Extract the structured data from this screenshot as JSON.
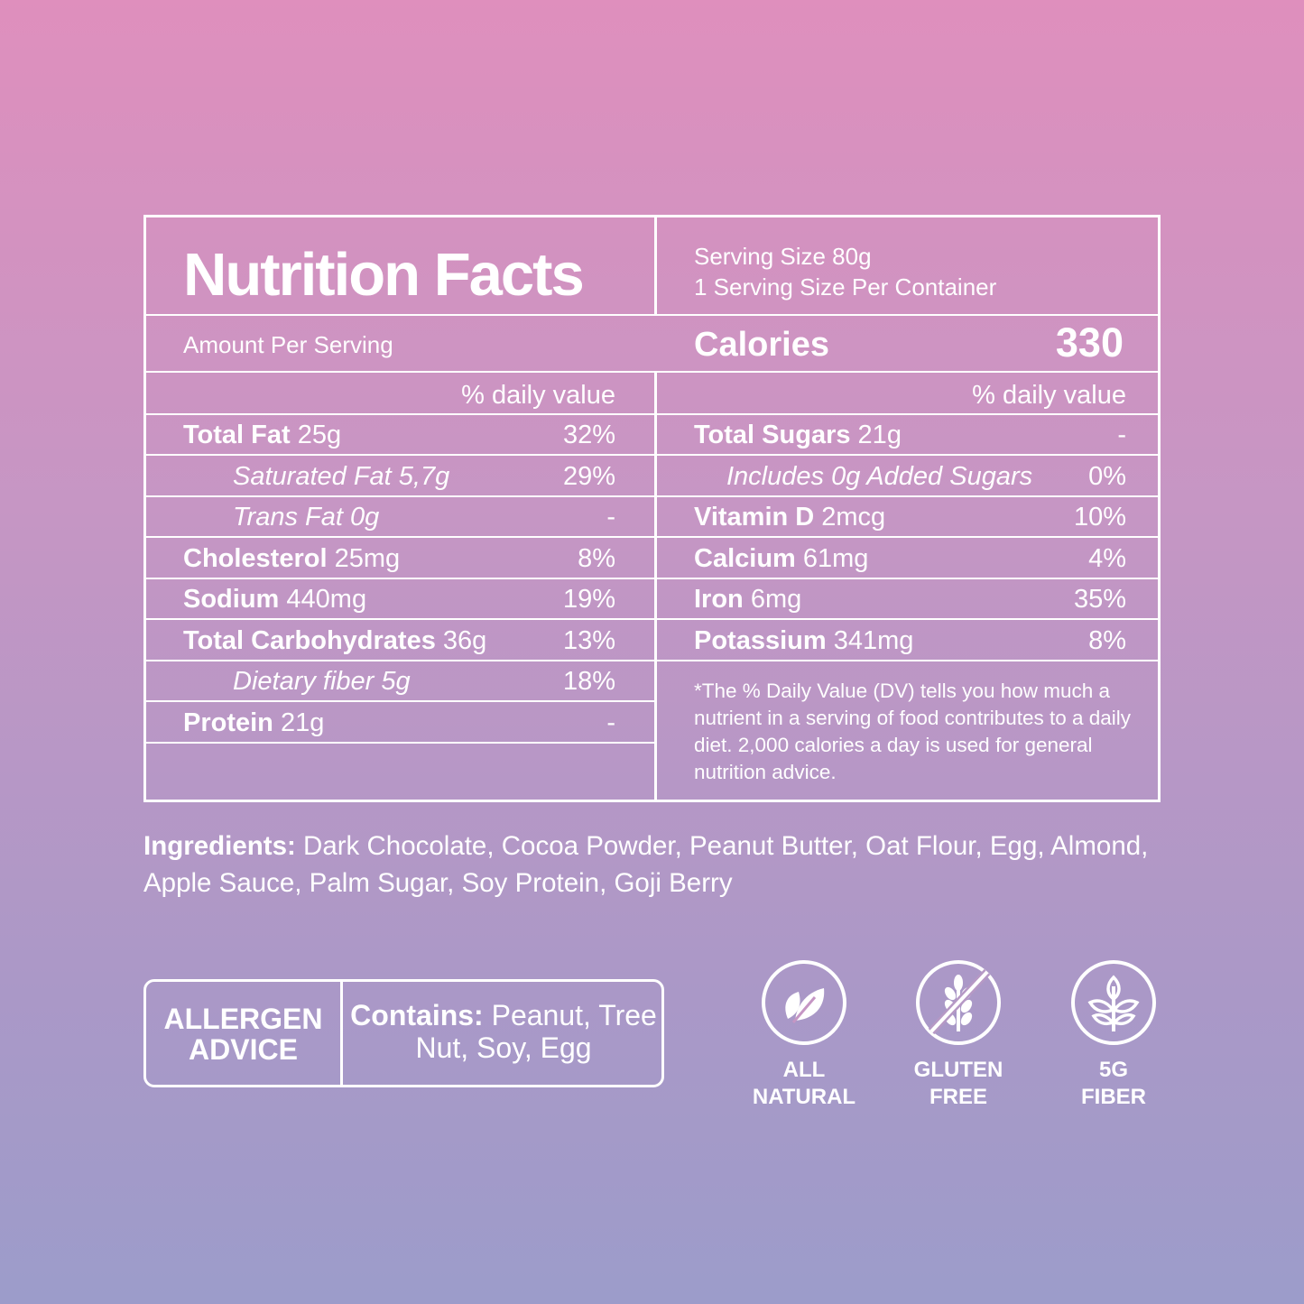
{
  "label": {
    "title": "Nutrition Facts",
    "serving_size": "Serving Size 80g",
    "servings_per_container": "1 Serving Size Per Container",
    "amount_per_serving": "Amount Per Serving",
    "calories_label": "Calories",
    "calories_value": "330",
    "dv_header_left": "% daily value",
    "dv_header_right": "% daily value",
    "left_rows": [
      {
        "name": "Total Fat",
        "amount": " 25g",
        "dv": "32%"
      },
      {
        "name": "Saturated Fat 5,7g",
        "amount": "",
        "dv": "29%"
      },
      {
        "name": "Trans Fat 0g",
        "amount": "",
        "dv": "-"
      },
      {
        "name": "Cholesterol",
        "amount": " 25mg",
        "dv": "8%"
      },
      {
        "name": "Sodium",
        "amount": " 440mg",
        "dv": "19%"
      },
      {
        "name": "Total Carbohydrates",
        "amount": " 36g",
        "dv": "13%"
      },
      {
        "name": "Dietary fiber 5g",
        "amount": "",
        "dv": "18%"
      },
      {
        "name": "Protein",
        "amount": " 21g",
        "dv": "-"
      }
    ],
    "right_rows": [
      {
        "name": "Total Sugars",
        "amount": " 21g",
        "dv": "-"
      },
      {
        "name": "Includes 0g Added Sugars",
        "amount": "",
        "dv": "0%"
      },
      {
        "name": "Vitamin D",
        "amount": " 2mcg",
        "dv": "10%"
      },
      {
        "name": "Calcium",
        "amount": " 61mg",
        "dv": "4%"
      },
      {
        "name": "Iron",
        "amount": " 6mg",
        "dv": "35%"
      },
      {
        "name": "Potassium",
        "amount": " 341mg",
        "dv": "8%"
      }
    ],
    "disclaimer": "*The % Daily Value (DV) tells you how much a nutrient in a serving of food contributes to a daily diet. 2,000 calories a day is used for general nutrition advice."
  },
  "ingredients": {
    "label": "Ingredients:",
    "text": " Dark Chocolate, Cocoa Powder, Peanut Butter, Oat Flour, Egg, Almond, Apple Sauce, Palm Sugar, Soy Protein, Goji Berry"
  },
  "allergen": {
    "heading": "ALLERGEN ADVICE",
    "contains_label": "Contains:",
    "contains_text": " Peanut, Tree Nut, Soy, Egg"
  },
  "badges": [
    {
      "icon": "leaf-icon",
      "caption": "ALL\nNATURAL"
    },
    {
      "icon": "gluten-free-icon",
      "caption": "GLUTEN\nFREE"
    },
    {
      "icon": "plant-icon",
      "caption": "5G\nFIBER"
    }
  ],
  "colors": {
    "text": "#ffffff",
    "gradient_top": "#df8fbd",
    "gradient_bottom": "#9c9cca"
  }
}
